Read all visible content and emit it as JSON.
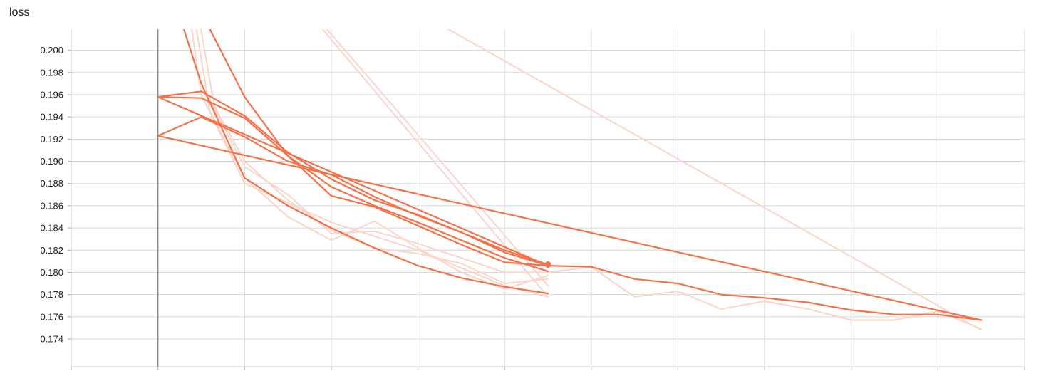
{
  "chart_data": {
    "type": "line",
    "title": "loss",
    "xlabel": "",
    "ylabel": "",
    "ylim": [
      0.1715,
      0.2019
    ],
    "xlim": [
      0,
      22
    ],
    "yticks": [
      "0.200",
      "0.198",
      "0.196",
      "0.194",
      "0.192",
      "0.190",
      "0.188",
      "0.186",
      "0.184",
      "0.182",
      "0.180",
      "0.178",
      "0.176",
      "0.174"
    ],
    "xticks": [],
    "grid": true,
    "legend": "none",
    "colors": {
      "smoothed": "#f4714a",
      "raw": "#fbd5c9",
      "axis": "#888888",
      "grid": "#d6d6d6"
    },
    "series": [
      {
        "style": "raw",
        "x": [
          2.7,
          3.0,
          4.0,
          6.0,
          8.0,
          10.0,
          11.0
        ],
        "y": [
          0.204,
          0.196,
          0.188,
          0.1845,
          0.182,
          0.1788,
          0.1778
        ]
      },
      {
        "style": "raw",
        "x": [
          2.8,
          3.2,
          4.0,
          5.0,
          6.0,
          7.0,
          8.0,
          9.0,
          10.0,
          11.0
        ],
        "y": [
          0.204,
          0.1945,
          0.1885,
          0.185,
          0.1829,
          0.1846,
          0.1822,
          0.18,
          0.1785,
          0.1797
        ]
      },
      {
        "style": "raw",
        "x": [
          2.9,
          3.3,
          4.0,
          5.0,
          6.0,
          7.0,
          8.0,
          9.0,
          10.0,
          11.0
        ],
        "y": [
          0.204,
          0.195,
          0.19,
          0.1865,
          0.1838,
          0.1822,
          0.1817,
          0.1808,
          0.179,
          0.1794
        ]
      },
      {
        "style": "raw",
        "x": [
          3.0,
          4.0,
          5.0,
          6.0,
          7.0,
          8.0,
          9.0,
          10.0,
          11.0
        ],
        "y": [
          0.197,
          0.1895,
          0.187,
          0.1835,
          0.1837,
          0.1826,
          0.1813,
          0.18,
          0.18
        ]
      },
      {
        "style": "raw",
        "x": [
          11.0,
          12.0,
          13.0,
          14.0,
          15.0,
          16.0,
          17.0,
          18.0,
          19.0,
          20.0,
          21.0
        ],
        "y": [
          0.18,
          0.1805,
          0.1778,
          0.1783,
          0.1767,
          0.1774,
          0.1767,
          0.1757,
          0.1757,
          0.1765,
          0.1749
        ]
      },
      {
        "style": "raw",
        "x": [
          5.8,
          11.0
        ],
        "y": [
          0.2019,
          0.1778
        ]
      },
      {
        "style": "raw",
        "x": [
          5.9,
          11.0
        ],
        "y": [
          0.2019,
          0.1788
        ]
      },
      {
        "style": "raw",
        "x": [
          8.7,
          21.0
        ],
        "y": [
          0.2019,
          0.1748
        ]
      },
      {
        "style": "smoothed",
        "x": [
          2.6,
          3.0,
          4.0,
          5.0,
          6.0,
          7.0,
          8.0,
          9.0,
          10.0,
          11.0
        ],
        "y": [
          0.2019,
          0.197,
          0.1885,
          0.186,
          0.184,
          0.1822,
          0.1806,
          0.1795,
          0.1787,
          0.1781
        ]
      },
      {
        "style": "smoothed",
        "x": [
          3.2,
          4.0,
          5.0,
          6.0,
          7.0,
          8.0,
          9.0,
          10.0,
          11.0
        ],
        "y": [
          0.2019,
          0.1958,
          0.1905,
          0.1869,
          0.1859,
          0.1842,
          0.1825,
          0.1809,
          0.1806
        ]
      },
      {
        "style": "smoothed",
        "x": [
          2.0,
          3.0,
          4.0,
          5.0,
          6.0,
          7.0,
          8.0,
          9.0,
          10.0,
          11.0
        ],
        "y": [
          0.1958,
          0.1963,
          0.1941,
          0.1908,
          0.1884,
          0.1865,
          0.1852,
          0.1836,
          0.1818,
          0.1806
        ]
      },
      {
        "style": "smoothed",
        "x": [
          2.0,
          3.0,
          4.0,
          5.0,
          6.0,
          7.0,
          8.0,
          9.0,
          10.0,
          11.0
        ],
        "y": [
          0.1958,
          0.1957,
          0.1939,
          0.1905,
          0.1877,
          0.186,
          0.1845,
          0.1829,
          0.1813,
          0.1801
        ]
      },
      {
        "style": "smoothed",
        "x": [
          2.0,
          3.0,
          4.0,
          5.0,
          6.0,
          7.0,
          8.0,
          9.0,
          10.0,
          11.0
        ],
        "y": [
          0.1923,
          0.194,
          0.1922,
          0.19,
          0.1888,
          0.1868,
          0.1851,
          0.1836,
          0.182,
          0.1807
        ]
      },
      {
        "style": "smoothed",
        "x": [
          2.0,
          11.0
        ],
        "y": [
          0.1958,
          0.1806
        ]
      },
      {
        "style": "smoothed",
        "x": [
          2.0,
          21.0
        ],
        "y": [
          0.1923,
          0.1757
        ]
      },
      {
        "style": "smoothed",
        "x": [
          11.0,
          12.0,
          13.0,
          14.0,
          15.0,
          16.0,
          17.0,
          18.0,
          19.0,
          20.0,
          21.0
        ],
        "y": [
          0.1806,
          0.1805,
          0.1794,
          0.179,
          0.178,
          0.1777,
          0.1773,
          0.1766,
          0.1762,
          0.1762,
          0.1757
        ]
      }
    ],
    "marker": {
      "x": 11.0,
      "y": 0.1807
    }
  }
}
